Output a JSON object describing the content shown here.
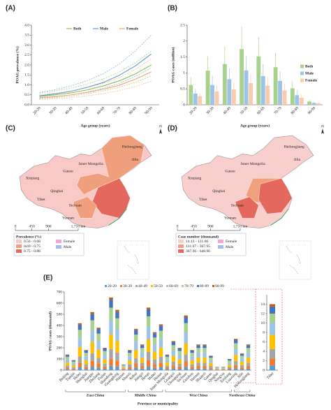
{
  "chart_data": [
    {
      "type": "line",
      "panel": "(A)",
      "ylabel": "POAG prevalence (%)",
      "xlabel": "Age group (years)",
      "categories": [
        "20-29",
        "30-39",
        "40-49",
        "50-59",
        "60-69",
        "70-79",
        "80-89",
        "90-99"
      ],
      "ylim": [
        0,
        4
      ],
      "yticks": [
        {
          "value": 0,
          "label": "0.0"
        },
        {
          "value": 0.5,
          "label": "0.5"
        },
        {
          "value": 1,
          "label": "1.0"
        },
        {
          "value": 1.5,
          "label": "1.5"
        },
        {
          "value": 2,
          "label": "2.0"
        },
        {
          "value": 2.5,
          "label": "2.5"
        },
        {
          "value": 3,
          "label": "3.0"
        },
        {
          "value": 3.5,
          "label": "3.5"
        },
        {
          "value": 4,
          "label": "4.0"
        }
      ],
      "series": [
        {
          "name": "Both",
          "color": "#8bbf5a",
          "values": [
            0.42,
            0.5,
            0.6,
            0.75,
            0.95,
            1.2,
            1.55,
            2.0
          ],
          "ci_lower": [
            0.3,
            0.36,
            0.44,
            0.55,
            0.7,
            0.88,
            1.12,
            1.45
          ],
          "ci_upper": [
            0.58,
            0.7,
            0.84,
            1.04,
            1.3,
            1.65,
            2.1,
            2.7
          ]
        },
        {
          "name": "Male",
          "color": "#5b9bd5",
          "values": [
            0.45,
            0.55,
            0.68,
            0.88,
            1.12,
            1.48,
            1.95,
            2.55
          ],
          "ci_lower": [
            0.32,
            0.4,
            0.5,
            0.64,
            0.82,
            1.08,
            1.42,
            1.85
          ],
          "ci_upper": [
            0.62,
            0.76,
            0.95,
            1.22,
            1.56,
            2.05,
            2.7,
            3.5
          ]
        },
        {
          "name": "Female",
          "color": "#f4a46a",
          "values": [
            0.36,
            0.42,
            0.5,
            0.62,
            0.78,
            0.98,
            1.28,
            1.65
          ],
          "ci_lower": [
            0.26,
            0.3,
            0.36,
            0.45,
            0.56,
            0.71,
            0.92,
            1.18
          ],
          "ci_upper": [
            0.5,
            0.58,
            0.7,
            0.86,
            1.08,
            1.36,
            1.78,
            2.3
          ]
        }
      ]
    },
    {
      "type": "bar",
      "panel": "(B)",
      "ylabel": "POAG cases (million)",
      "xlabel": "Age group (years)",
      "categories": [
        "20-29",
        "30-39",
        "40-49",
        "50-59",
        "60-69",
        "70-79",
        "80-89",
        "90-99"
      ],
      "ylim": [
        0,
        2.5
      ],
      "yticks": [
        0,
        0.5,
        1,
        1.5,
        2,
        2.5
      ],
      "series": [
        {
          "name": "Both",
          "color": "#a9d18e",
          "values": [
            0.62,
            1.07,
            1.28,
            1.75,
            1.52,
            1.18,
            0.52,
            0.1
          ],
          "errors": [
            0.25,
            0.45,
            0.55,
            0.7,
            0.6,
            0.45,
            0.22,
            0.05
          ]
        },
        {
          "name": "Male",
          "color": "#9dc3e6",
          "values": [
            0.35,
            0.62,
            0.8,
            1.08,
            0.9,
            0.75,
            0.3,
            0.06
          ],
          "errors": [
            0.15,
            0.28,
            0.35,
            0.45,
            0.38,
            0.3,
            0.14,
            0.03
          ]
        },
        {
          "name": "Female",
          "color": "#f8cbad",
          "values": [
            0.27,
            0.42,
            0.48,
            0.68,
            0.6,
            0.45,
            0.22,
            0.05
          ],
          "errors": [
            0.1,
            0.2,
            0.22,
            0.3,
            0.27,
            0.2,
            0.1,
            0.03
          ]
        }
      ]
    },
    {
      "type": "map",
      "panel": "(C)",
      "north": "N",
      "regions": [
        "Xinjiang",
        "Tibet",
        "Qinghai",
        "Gansu",
        "Inner Mongolia",
        "Heilongjiang",
        "Jilin",
        "Sichuan",
        "Yunnan"
      ],
      "scale_ticks": [
        0,
        450,
        900,
        {
          "value": 1710,
          "label": "1,710 km"
        }
      ],
      "legend_title": "Prevalence (%)",
      "classes": [
        {
          "label": "0.56 - 0.68",
          "color": "#f8c9c6"
        },
        {
          "label": "0.69 - 0.75",
          "color": "#ef9f7c"
        },
        {
          "label": "0.75 - 0.88",
          "color": "#e4685e"
        }
      ],
      "bar_legend": [
        {
          "name": "Female",
          "color": "#f4a6d7"
        },
        {
          "name": "Male",
          "color": "#aab6f2"
        }
      ]
    },
    {
      "type": "map",
      "panel": "(D)",
      "north": "N",
      "regions": [
        "Xinjiang",
        "Tibet",
        "Qinghai",
        "Gansu",
        "Inner Mongolia",
        "Heilongjiang",
        "Jilin",
        "Sichuan",
        "Yunnan"
      ],
      "scale_ticks": [
        0,
        450,
        900,
        {
          "value": 1710,
          "label": "1,710 km"
        }
      ],
      "legend_title": "Case number (thousand)",
      "classes": [
        {
          "label": "14.13 - 131.66",
          "color": "#f8cfcc"
        },
        {
          "label": "131.67 - 367.95",
          "color": "#f0a07c"
        },
        {
          "label": "367.96 - 648.96",
          "color": "#e4685e"
        }
      ],
      "bar_legend": [
        {
          "name": "Female",
          "color": "#f4a6d7"
        },
        {
          "name": "Male",
          "color": "#aab6f2"
        }
      ]
    },
    {
      "type": "stacked_bar",
      "panel": "(E)",
      "ylabel": "POAG cases (thousand)",
      "xlabel": "Province or municipality",
      "categories": [
        "Beijing",
        "Tianjin",
        "Hebei",
        "Shanghai",
        "Jiangsu",
        "Zhejiang",
        "Fujian",
        "Shandong",
        "Guangdong",
        "Hainan",
        "Shanxi",
        "Anhui",
        "Jiangxi",
        "Henan",
        "Hubei",
        "Hunan",
        "Inner Mongolia",
        "Guangxi",
        "Chongqing",
        "Sichuan",
        "Guizhou",
        "Yunnan",
        "Shaanxi",
        "Gansu",
        "Qinghai",
        "Ningxia",
        "Xinjiang",
        "Liaoning",
        "Jilin",
        "Heilongjiang"
      ],
      "groups": [
        {
          "name": "East China",
          "size": 10
        },
        {
          "name": "Middle China",
          "size": 6
        },
        {
          "name": "West China",
          "size": 11
        },
        {
          "name": "Northeast China",
          "size": 3
        }
      ],
      "ylim": [
        0,
        700
      ],
      "yticks": [
        0,
        100,
        200,
        300,
        400,
        500,
        600,
        700
      ],
      "series": [
        {
          "name": "20-29",
          "color": "#5b9bd5",
          "values": [
            8,
            5,
            25,
            11,
            31,
            23,
            12,
            39,
            32,
            3,
            11,
            22,
            14,
            34,
            20,
            25,
            8,
            16,
            12,
            29,
            11,
            14,
            14,
            8,
            2,
            2,
            6,
            17,
            9,
            14
          ]
        },
        {
          "name": "30-39",
          "color": "#ed7d31",
          "values": [
            14,
            9,
            42,
            18,
            52,
            38,
            20,
            65,
            54,
            5,
            18,
            37,
            23,
            56,
            34,
            41,
            14,
            26,
            20,
            49,
            18,
            23,
            23,
            13,
            3,
            3,
            10,
            28,
            15,
            23
          ]
        },
        {
          "name": "40-49",
          "color": "#a5a5a5",
          "values": [
            18,
            12,
            55,
            23,
            68,
            49,
            26,
            85,
            70,
            7,
            23,
            48,
            30,
            73,
            44,
            53,
            18,
            34,
            26,
            64,
            23,
            30,
            30,
            17,
            4,
            4,
            13,
            36,
            20,
            30
          ]
        },
        {
          "name": "50-59",
          "color": "#ffc000",
          "values": [
            28,
            18,
            84,
            36,
            104,
            76,
            40,
            130,
            108,
            10,
            36,
            74,
            46,
            112,
            68,
            82,
            28,
            52,
            40,
            98,
            36,
            46,
            46,
            26,
            6,
            6,
            20,
            56,
            30,
            46
          ]
        },
        {
          "name": "60-69",
          "color": "#9dc3e6",
          "values": [
            28,
            18,
            84,
            36,
            104,
            76,
            40,
            130,
            108,
            10,
            36,
            74,
            46,
            112,
            68,
            82,
            28,
            52,
            40,
            98,
            36,
            46,
            46,
            26,
            6,
            6,
            20,
            56,
            30,
            46
          ]
        },
        {
          "name": "70-79",
          "color": "#a9d18e",
          "values": [
            24,
            15,
            71,
            31,
            88,
            65,
            34,
            110,
            92,
            8,
            31,
            63,
            39,
            95,
            58,
            70,
            24,
            44,
            34,
            83,
            31,
            39,
            39,
            22,
            5,
            5,
            17,
            48,
            25,
            39
          ]
        },
        {
          "name": "80-89",
          "color": "#4472c4",
          "values": [
            16,
            10,
            46,
            20,
            57,
            42,
            22,
            72,
            59,
            5,
            20,
            41,
            25,
            62,
            37,
            45,
            16,
            29,
            22,
            54,
            20,
            25,
            25,
            14,
            3,
            3,
            11,
            31,
            17,
            25
          ]
        },
        {
          "name": "90-99",
          "color": "#c55a11",
          "values": [
            4,
            3,
            13,
            5,
            16,
            11,
            6,
            19,
            17,
            2,
            5,
            11,
            7,
            16,
            11,
            12,
            4,
            7,
            6,
            15,
            5,
            7,
            7,
            4,
            1,
            1,
            3,
            8,
            4,
            7
          ]
        }
      ],
      "inset": {
        "category": "Tibet",
        "values": [
          1,
          1.5,
          2,
          3,
          2.5,
          2,
          1.5,
          0.5
        ],
        "ylim": [
          0,
          16
        ],
        "yticks": [
          0,
          2,
          4,
          6,
          8,
          10,
          12,
          14
        ]
      }
    }
  ]
}
